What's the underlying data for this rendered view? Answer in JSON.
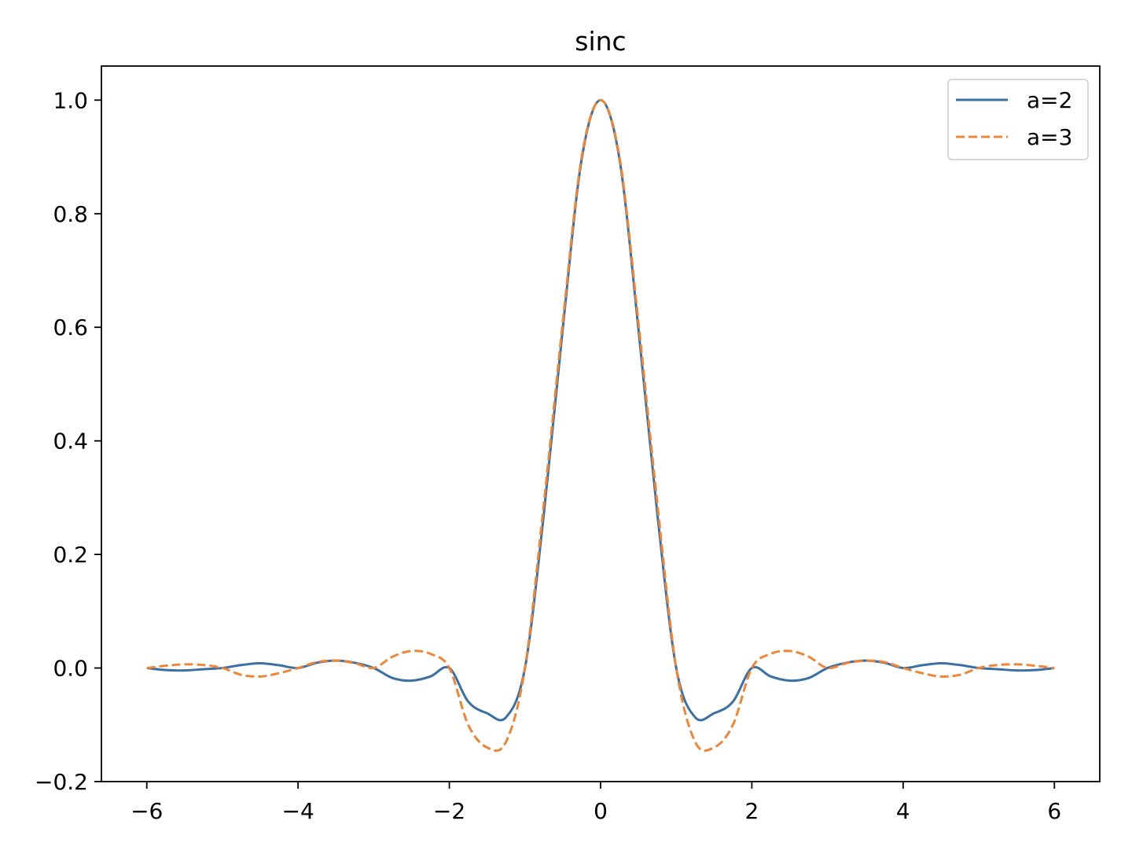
{
  "chart_data": {
    "type": "line",
    "title": "sinc",
    "xlabel": "",
    "ylabel": "",
    "xlim": [
      -6.6,
      6.6
    ],
    "ylim": [
      -0.2,
      1.06
    ],
    "x_ticks": [
      -6,
      -4,
      -2,
      0,
      2,
      4,
      6
    ],
    "x_tick_labels": [
      "−6",
      "−4",
      "−2",
      "0",
      "2",
      "4",
      "6"
    ],
    "y_ticks": [
      -0.2,
      0.0,
      0.2,
      0.4,
      0.6,
      0.8,
      1.0
    ],
    "y_tick_labels": [
      "−0.2",
      "0.0",
      "0.2",
      "0.4",
      "0.6",
      "0.8",
      "1.0"
    ],
    "grid": false,
    "legend": {
      "placement": "top-right"
    },
    "x": [
      -6.0,
      -5.75,
      -5.5,
      -5.25,
      -5.0,
      -4.75,
      -4.5,
      -4.25,
      -4.0,
      -3.75,
      -3.5,
      -3.25,
      -3.0,
      -2.75,
      -2.5,
      -2.25,
      -2.0,
      -1.75,
      -1.5,
      -1.25,
      -1.0,
      -0.75,
      -0.5,
      -0.25,
      0.0,
      0.25,
      0.5,
      0.75,
      1.0,
      1.25,
      1.5,
      1.75,
      2.0,
      2.25,
      2.5,
      2.75,
      3.0,
      3.25,
      3.5,
      3.75,
      4.0,
      4.25,
      4.5,
      4.75,
      5.0,
      5.25,
      5.5,
      5.75,
      6.0
    ],
    "series": [
      {
        "name": "a=2",
        "color": "#3a6fa4",
        "dash": "solid",
        "values": [
          0.0,
          -0.0036,
          -0.0043,
          -0.0021,
          0.0,
          0.0052,
          0.0084,
          0.0049,
          0.0,
          0.0093,
          0.013,
          0.0092,
          0.0,
          -0.0177,
          -0.0223,
          -0.0149,
          0.0,
          -0.0592,
          -0.0797,
          -0.0867,
          0.0,
          0.2717,
          0.5975,
          0.896,
          1.0,
          0.896,
          0.5975,
          0.2717,
          0.0,
          -0.0867,
          -0.0797,
          -0.0592,
          0.0,
          -0.0149,
          -0.0223,
          -0.0177,
          0.0,
          0.0092,
          0.013,
          0.0093,
          0.0,
          0.0049,
          0.0084,
          0.0052,
          0.0,
          -0.0021,
          -0.0043,
          -0.0036,
          0.0
        ]
      },
      {
        "name": "a=3",
        "color": "#ef8636",
        "dash": "dashed",
        "values": [
          0.0,
          0.004,
          0.0065,
          0.0053,
          0.0,
          -0.012,
          -0.015,
          -0.009,
          0.0,
          0.0105,
          0.013,
          0.0085,
          0.0,
          0.02,
          0.03,
          0.025,
          0.0,
          -0.1,
          -0.14,
          -0.13,
          0.0,
          0.29,
          0.609,
          0.9,
          1.0,
          0.9,
          0.609,
          0.29,
          0.0,
          -0.13,
          -0.14,
          -0.1,
          0.0,
          0.025,
          0.03,
          0.02,
          0.0,
          0.0085,
          0.013,
          0.0105,
          0.0,
          -0.009,
          -0.015,
          -0.012,
          0.0,
          0.0053,
          0.0065,
          0.004,
          0.0
        ]
      }
    ]
  }
}
